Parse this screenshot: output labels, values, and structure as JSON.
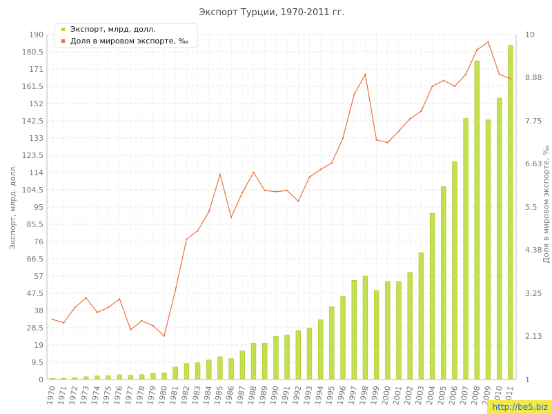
{
  "chart_data": {
    "type": "bar+line",
    "title": "Экспорт Турции, 1970-2011 гг.",
    "ylabel_left": "Экспорт, млрд. долл.",
    "ylabel_right": "Доля в мировом экспорте, ‰",
    "legend_position": "top-left",
    "grid": true,
    "left_axis": {
      "ylim": [
        0,
        190
      ],
      "ticks": [
        "0",
        "9.5",
        "19",
        "28.5",
        "38",
        "47.5",
        "57",
        "66.5",
        "76",
        "85.5",
        "95",
        "104.5",
        "114",
        "123.5",
        "133",
        "142.5",
        "152",
        "161.5",
        "171",
        "180.5",
        "190"
      ]
    },
    "right_axis": {
      "ylim": [
        1,
        10
      ],
      "ticks": [
        "1",
        "2.13",
        "3.25",
        "4.38",
        "5.5",
        "6.63",
        "7.75",
        "8.88",
        "10"
      ]
    },
    "categories": [
      "1970",
      "1971",
      "1972",
      "1973",
      "1974",
      "1975",
      "1976",
      "1977",
      "1978",
      "1979",
      "1980",
      "1981",
      "1982",
      "1983",
      "1984",
      "1985",
      "1986",
      "1987",
      "1988",
      "1989",
      "1990",
      "1991",
      "1992",
      "1993",
      "1994",
      "1995",
      "1996",
      "1997",
      "1998",
      "1999",
      "2000",
      "2001",
      "2002",
      "2003",
      "2004",
      "2005",
      "2006",
      "2007",
      "2008",
      "2009",
      "2010",
      "2011"
    ],
    "series": [
      {
        "name": "Экспорт, млрд. долл.",
        "type": "bar",
        "axis": "left",
        "color": "#c3e04f",
        "values": [
          0.6,
          0.7,
          1.0,
          1.5,
          2.0,
          2.0,
          2.6,
          2.2,
          2.7,
          3.3,
          3.6,
          6.9,
          8.8,
          9.2,
          10.8,
          12.5,
          11.5,
          15.7,
          20.0,
          20.0,
          23.8,
          24.5,
          26.9,
          28.4,
          32.9,
          40.0,
          45.9,
          54.6,
          57.0,
          49.0,
          54.0,
          54.0,
          59.0,
          69.9,
          91.5,
          106.2,
          120.0,
          143.8,
          175.5,
          143.0,
          155.0,
          184.0
        ]
      },
      {
        "name": "Доля в мировом экспорте, ‰",
        "type": "line",
        "axis": "right",
        "color": "#e8703a",
        "values": [
          2.57,
          2.48,
          2.88,
          3.13,
          2.75,
          2.88,
          3.1,
          2.3,
          2.53,
          2.4,
          2.14,
          3.33,
          4.66,
          4.88,
          5.38,
          6.35,
          5.23,
          5.88,
          6.4,
          5.93,
          5.9,
          5.93,
          5.65,
          6.28,
          6.48,
          6.65,
          7.3,
          8.43,
          8.96,
          7.25,
          7.18,
          7.48,
          7.8,
          8.0,
          8.65,
          8.8,
          8.65,
          8.96,
          9.6,
          9.8,
          8.96,
          8.85
        ]
      }
    ]
  },
  "watermark": "http://be5.biz"
}
